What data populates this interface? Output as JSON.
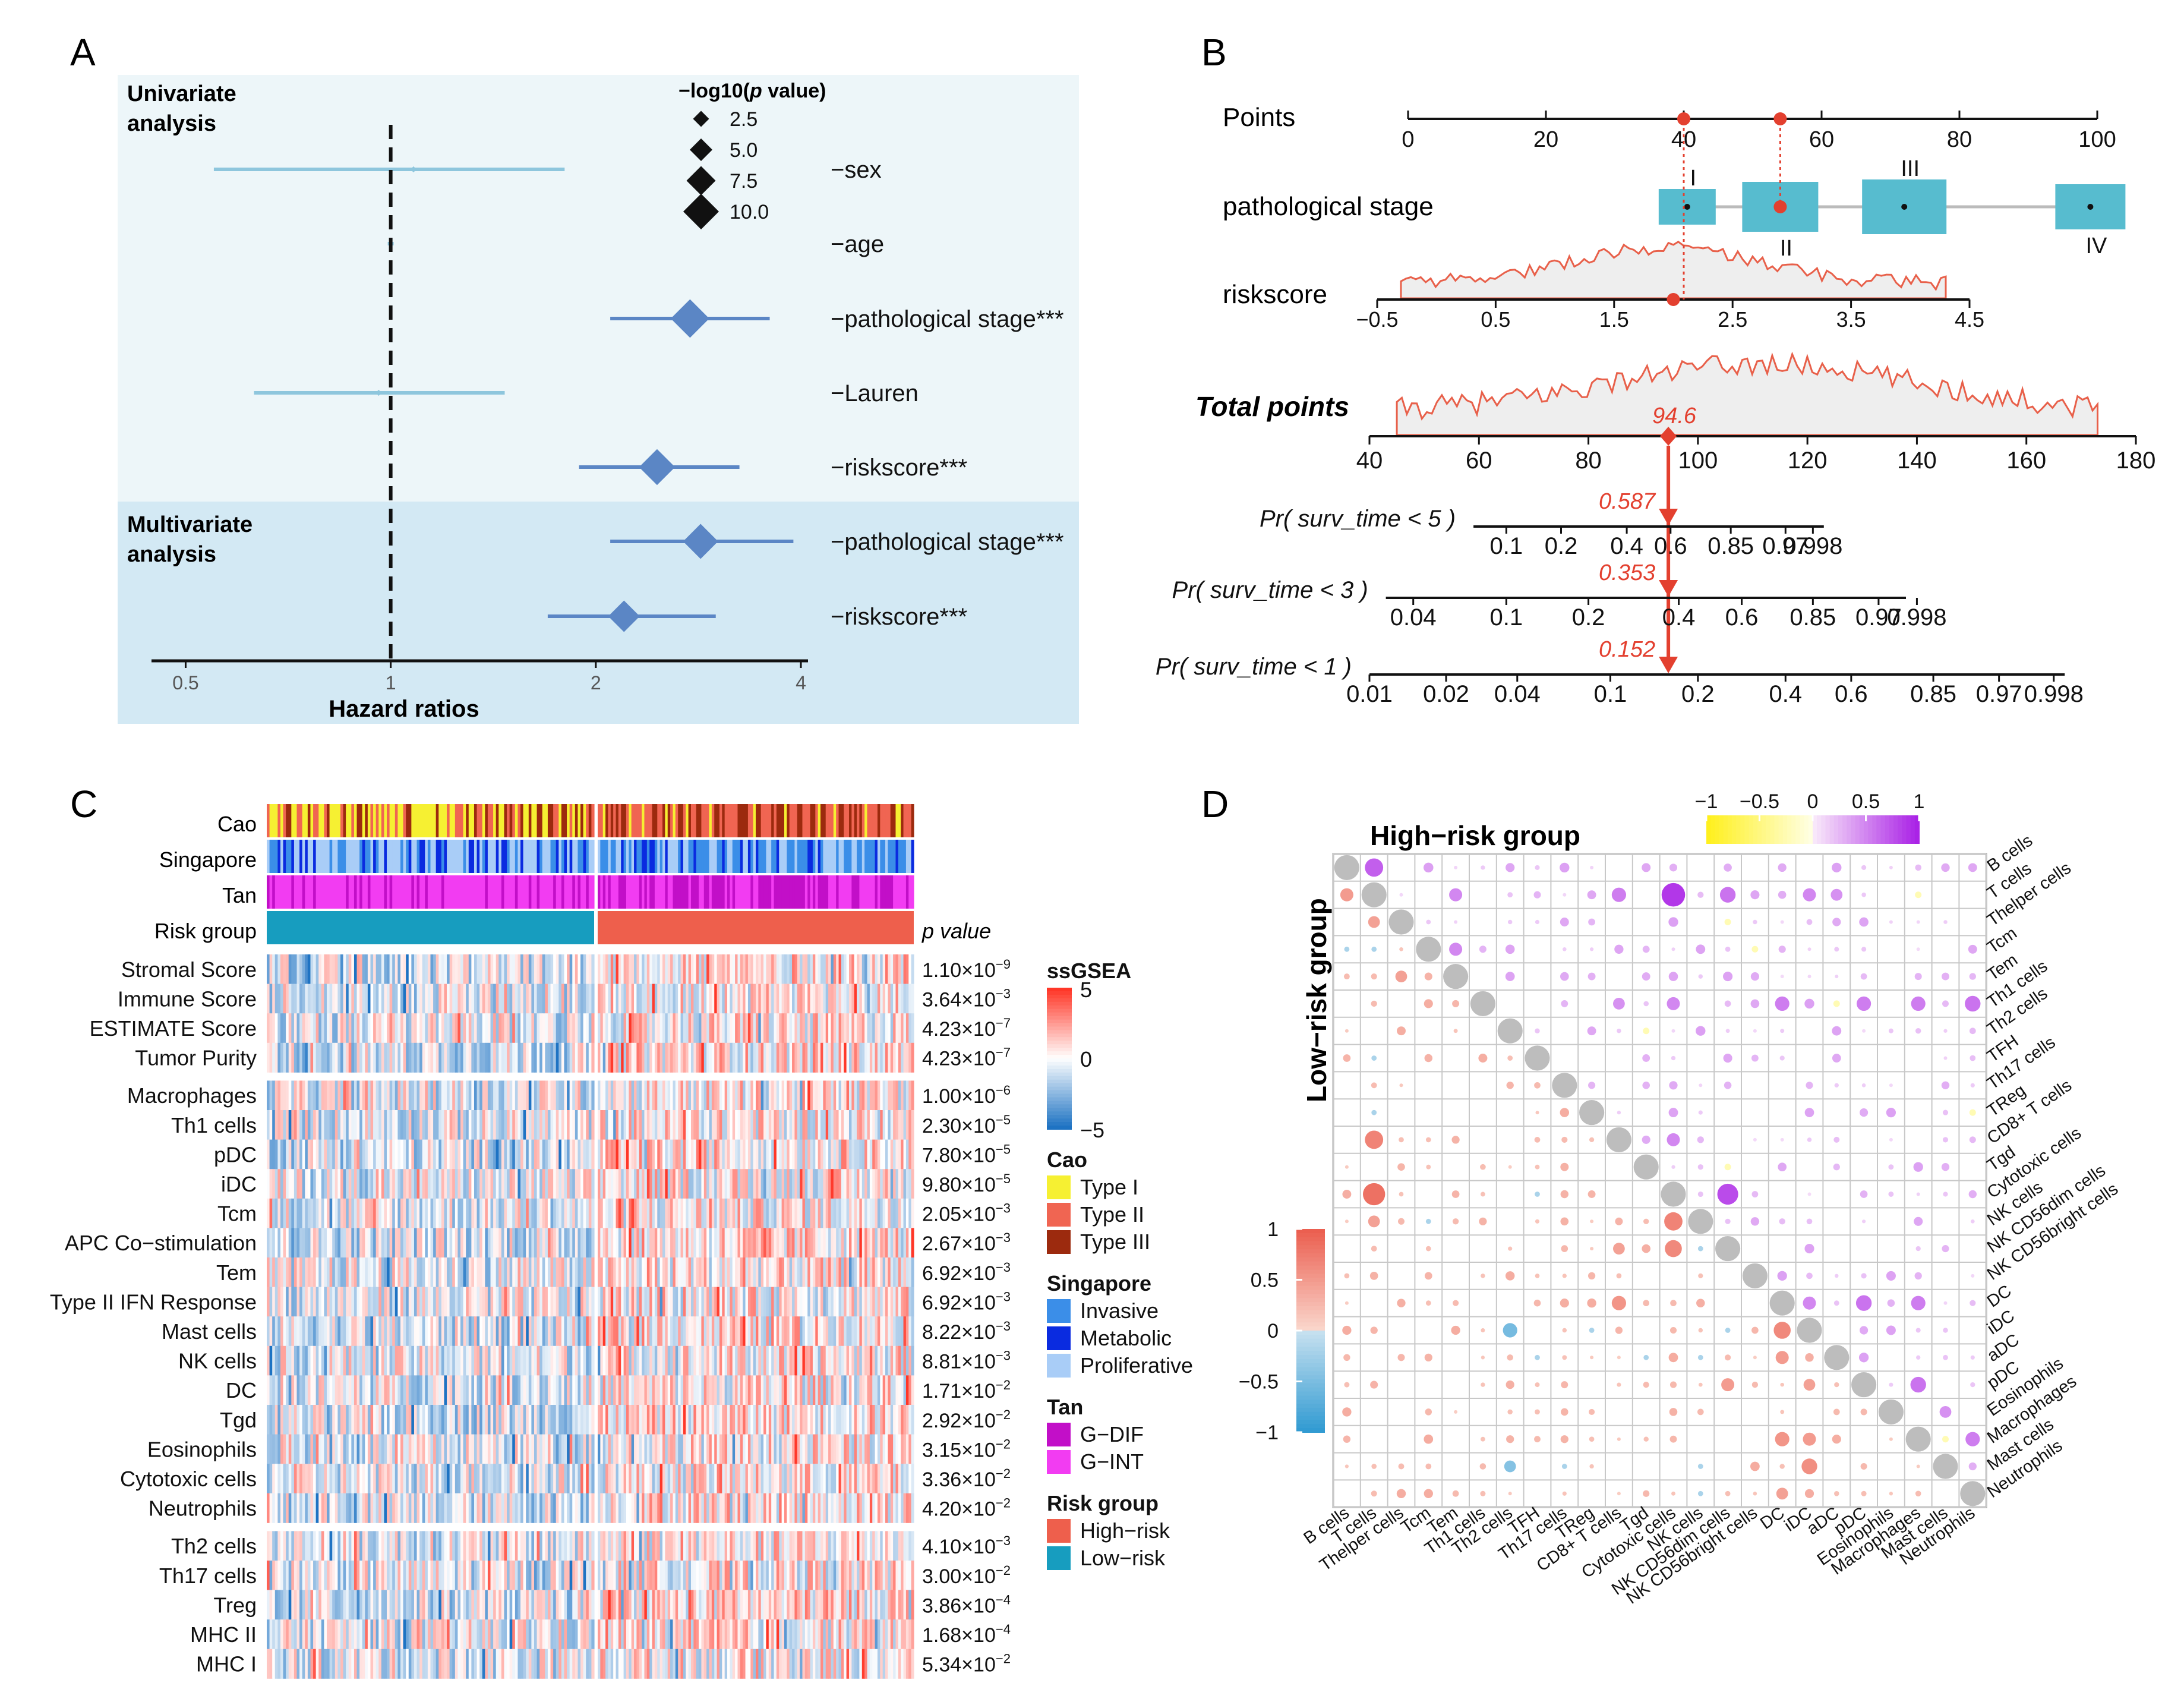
{
  "figure": {
    "panel_labels": [
      "A",
      "B",
      "C",
      "D"
    ]
  },
  "chart_data": [
    {
      "panel": "A",
      "type": "forest",
      "xlabel": "Hazard ratios",
      "xscale": "log2",
      "xlim": [
        0.45,
        4.0
      ],
      "ticks": [
        {
          "v": 0.5,
          "label": "0.5"
        },
        {
          "v": 1,
          "label": "1"
        },
        {
          "v": 2,
          "label": "2"
        },
        {
          "v": 4,
          "label": "4"
        }
      ],
      "reference_line": 1,
      "groups": [
        {
          "label_line1": "Univariate",
          "label_line2": "analysis"
        },
        {
          "label_line1": "Multivariate",
          "label_line2": "analysis"
        }
      ],
      "legend": {
        "title_prefix": "−log10(",
        "title_italic": "p",
        "title_suffix": " value)",
        "items": [
          {
            "label": "2.5",
            "v": 2.5
          },
          {
            "label": "5.0",
            "v": 5.0
          },
          {
            "label": "7.5",
            "v": 7.5
          },
          {
            "label": "10.0",
            "v": 10.0
          }
        ]
      },
      "rows": [
        {
          "label": "−sex",
          "group": 0,
          "hr": 1.08,
          "lo": 0.55,
          "hi": 1.8,
          "mlog10p": 0.5,
          "color": "#8ec6dd"
        },
        {
          "label": "−age",
          "group": 0,
          "hr": 1.0,
          "lo": 0.99,
          "hi": 1.01,
          "mlog10p": 0.4,
          "color": "#8ec6dd"
        },
        {
          "label": "−pathological stage***",
          "group": 0,
          "hr": 2.75,
          "lo": 2.1,
          "hi": 3.6,
          "mlog10p": 7.0,
          "color": "#5b86c5"
        },
        {
          "label": "−Lauren",
          "group": 0,
          "hr": 0.96,
          "lo": 0.63,
          "hi": 1.47,
          "mlog10p": 0.5,
          "color": "#8ec6dd"
        },
        {
          "label": "−riskscore***",
          "group": 0,
          "hr": 2.46,
          "lo": 1.89,
          "hi": 3.25,
          "mlog10p": 6.5,
          "color": "#5b86c5"
        },
        {
          "label": "−pathological stage***",
          "group": 1,
          "hr": 2.85,
          "lo": 2.1,
          "hi": 3.9,
          "mlog10p": 6.3,
          "color": "#5b86c5"
        },
        {
          "label": "−riskscore***",
          "group": 1,
          "hr": 2.2,
          "lo": 1.7,
          "hi": 3.0,
          "mlog10p": 5.6,
          "color": "#5b86c5"
        }
      ]
    },
    {
      "panel": "B",
      "type": "nomogram",
      "points_axis": {
        "label": "Points",
        "min": 0,
        "max": 100,
        "ticks": [
          0,
          20,
          40,
          60,
          80,
          100
        ]
      },
      "stage": {
        "label": "pathological stage",
        "levels": [
          {
            "name": "I",
            "points": 40.5
          },
          {
            "name": "II",
            "points": 54
          },
          {
            "name": "III",
            "points": 72
          },
          {
            "name": "IV",
            "points": 99
          }
        ]
      },
      "riskscore": {
        "label": "riskscore",
        "min": -0.5,
        "max": 4.5,
        "ticks": [
          -0.5,
          0.5,
          1.5,
          2.5,
          3.5,
          4.5
        ],
        "tick_labels": [
          "−0.5",
          "0.5",
          "1.5",
          "2.5",
          "3.5",
          "4.5"
        ],
        "selected": 2.0
      },
      "selected_points": [
        40,
        54
      ],
      "total_points": {
        "label": "Total points",
        "min": 40,
        "max": 180,
        "ticks": [
          40,
          60,
          80,
          100,
          120,
          140,
          160,
          180
        ],
        "value": 94.6,
        "value_label": "94.6"
      },
      "probabilities": [
        {
          "label_prefix": "Pr( surv_time < ",
          "t": "5",
          "value": 0.587,
          "value_label": "0.587",
          "ticks": [
            {
              "l": "0.1",
              "tp": 65
            },
            {
              "l": "0.2",
              "tp": 75
            },
            {
              "l": "0.4",
              "tp": 87
            },
            {
              "l": "0.6",
              "tp": 95
            },
            {
              "l": "0.85",
              "tp": 106
            },
            {
              "l": "0.97",
              "tp": 116
            },
            {
              "l": "0.998",
              "tp": 121
            }
          ],
          "range": [
            59,
            123
          ]
        },
        {
          "label_prefix": "Pr( surv_time < ",
          "t": "3",
          "value": 0.353,
          "value_label": "0.353",
          "ticks": [
            {
              "l": "0.04",
              "tp": 48
            },
            {
              "l": "0.1",
              "tp": 65
            },
            {
              "l": "0.2",
              "tp": 80
            },
            {
              "l": "0.4",
              "tp": 96.5
            },
            {
              "l": "0.6",
              "tp": 108
            },
            {
              "l": "0.85",
              "tp": 121
            },
            {
              "l": "0.97",
              "tp": 133
            },
            {
              "l": "0.998",
              "tp": 140
            }
          ],
          "range": [
            43,
            138
          ]
        },
        {
          "label_prefix": "Pr( surv_time < ",
          "t": "1",
          "value": 0.152,
          "value_label": "0.152",
          "ticks": [
            {
              "l": "0.01",
              "tp": 40
            },
            {
              "l": "0.02",
              "tp": 54
            },
            {
              "l": "0.04",
              "tp": 67
            },
            {
              "l": "0.1",
              "tp": 84
            },
            {
              "l": "0.2",
              "tp": 100
            },
            {
              "l": "0.4",
              "tp": 116
            },
            {
              "l": "0.6",
              "tp": 128
            },
            {
              "l": "0.85",
              "tp": 143
            },
            {
              "l": "0.97",
              "tp": 155
            },
            {
              "l": "0.998",
              "tp": 165
            }
          ],
          "range": [
            40,
            167
          ]
        }
      ]
    },
    {
      "panel": "C",
      "type": "heatmap",
      "annotation_rows": [
        "Cao",
        "Singapore",
        "Tan",
        "Risk group"
      ],
      "pvalue_header": "p value",
      "rows": [
        {
          "label": "Stromal Score",
          "p": "1.10×10",
          "exp": "−9",
          "block": 0
        },
        {
          "label": "Immune Score",
          "p": "3.64×10",
          "exp": "−3",
          "block": 0
        },
        {
          "label": "ESTIMATE Score",
          "p": "4.23×10",
          "exp": "−7",
          "block": 0
        },
        {
          "label": "Tumor Purity",
          "p": "4.23×10",
          "exp": "−7",
          "block": 0
        },
        {
          "label": "Macrophages",
          "p": "1.00×10",
          "exp": "−6",
          "block": 1
        },
        {
          "label": "Th1 cells",
          "p": "2.30×10",
          "exp": "−5",
          "block": 1
        },
        {
          "label": "pDC",
          "p": "7.80×10",
          "exp": "−5",
          "block": 1
        },
        {
          "label": "iDC",
          "p": "9.80×10",
          "exp": "−5",
          "block": 1
        },
        {
          "label": "Tcm",
          "p": "2.05×10",
          "exp": "−3",
          "block": 1
        },
        {
          "label": "APC Co−stimulation",
          "p": "2.67×10",
          "exp": "−3",
          "block": 1
        },
        {
          "label": "Tem",
          "p": "6.92×10",
          "exp": "−3",
          "block": 1
        },
        {
          "label": "Type II IFN Response",
          "p": "6.92×10",
          "exp": "−3",
          "block": 1
        },
        {
          "label": "Mast cells",
          "p": "8.22×10",
          "exp": "−3",
          "block": 1
        },
        {
          "label": "NK cells",
          "p": "8.81×10",
          "exp": "−3",
          "block": 1
        },
        {
          "label": "DC",
          "p": "1.71×10",
          "exp": "−2",
          "block": 1
        },
        {
          "label": "Tgd",
          "p": "2.92×10",
          "exp": "−2",
          "block": 1
        },
        {
          "label": "Eosinophils",
          "p": "3.15×10",
          "exp": "−2",
          "block": 1
        },
        {
          "label": "Cytotoxic cells",
          "p": "3.36×10",
          "exp": "−2",
          "block": 1
        },
        {
          "label": "Neutrophils",
          "p": "4.20×10",
          "exp": "−2",
          "block": 1
        },
        {
          "label": "Th2 cells",
          "p": "4.10×10",
          "exp": "−3",
          "block": 2
        },
        {
          "label": "Th17 cells",
          "p": "3.00×10",
          "exp": "−2",
          "block": 2
        },
        {
          "label": "Treg",
          "p": "3.86×10",
          "exp": "−4",
          "block": 2
        },
        {
          "label": "MHC II",
          "p": "1.68×10",
          "exp": "−4",
          "block": 2
        },
        {
          "label": "MHC I",
          "p": "5.34×10",
          "exp": "−2",
          "block": 2
        }
      ],
      "scale": {
        "title": "ssGSEA",
        "min": -5,
        "max": 5,
        "tick_labels": [
          "5",
          "0",
          "−5"
        ]
      },
      "legends": [
        {
          "title": "Cao",
          "items": [
            {
              "label": "Type I",
              "color": "#f6f032"
            },
            {
              "label": "Type II",
              "color": "#f06552"
            },
            {
              "label": "Type III",
              "color": "#9c2a0e"
            }
          ]
        },
        {
          "title": "Singapore",
          "items": [
            {
              "label": "Invasive",
              "color": "#3b8ee8"
            },
            {
              "label": "Metabolic",
              "color": "#0a2be0"
            },
            {
              "label": "Proliferative",
              "color": "#a9cdf7"
            }
          ]
        },
        {
          "title": "Tan",
          "items": [
            {
              "label": "G−DIF",
              "color": "#c20fc8"
            },
            {
              "label": "G−INT",
              "color": "#f23cf2"
            }
          ]
        },
        {
          "title": "Risk group",
          "items": [
            {
              "label": "High−risk",
              "color": "#ee5f4c"
            },
            {
              "label": "Low−risk",
              "color": "#179dbf"
            }
          ]
        }
      ],
      "n_low": 120,
      "n_high": 122
    },
    {
      "panel": "D",
      "type": "correlation-matrix",
      "upper_title": "High−risk group",
      "lower_title": "Low−risk group",
      "cells": [
        "B cells",
        "T cells",
        "Thelper cells",
        "Tcm",
        "Tem",
        "Th1 cells",
        "Th2 cells",
        "TFH",
        "Th17 cells",
        "TReg",
        "CD8+ T cells",
        "Tgd",
        "Cytotoxic cells",
        "NK cells",
        "NK CD56dim cells",
        "NK CD56bright cells",
        "DC",
        "iDC",
        "aDC",
        "pDC",
        "Eosinophils",
        "Macrophages",
        "Mast cells",
        "Neutrophils"
      ],
      "upper_scale": {
        "min": -1,
        "max": 1,
        "ticks": [
          "−1",
          "−0.5",
          "0",
          "0.5",
          "1"
        ]
      },
      "lower_scale": {
        "min": -1,
        "max": 1,
        "ticks": [
          "1",
          "0.5",
          "0",
          "−0.5",
          "−1"
        ]
      },
      "upper_strong": [
        [
          0,
          1,
          0.7
        ],
        [
          1,
          4,
          0.5
        ],
        [
          1,
          10,
          0.55
        ],
        [
          1,
          12,
          0.9
        ],
        [
          1,
          14,
          0.6
        ],
        [
          1,
          17,
          0.5
        ],
        [
          1,
          18,
          0.45
        ],
        [
          3,
          4,
          0.5
        ],
        [
          5,
          10,
          0.45
        ],
        [
          5,
          12,
          0.5
        ],
        [
          5,
          16,
          0.55
        ],
        [
          5,
          19,
          0.55
        ],
        [
          5,
          21,
          0.55
        ],
        [
          5,
          23,
          0.6
        ],
        [
          10,
          12,
          0.5
        ],
        [
          12,
          14,
          0.8
        ],
        [
          16,
          17,
          0.5
        ],
        [
          16,
          19,
          0.6
        ],
        [
          16,
          21,
          0.55
        ],
        [
          19,
          21,
          0.6
        ],
        [
          21,
          23,
          0.55
        ],
        [
          20,
          22,
          0.45
        ]
      ],
      "lower_strong": [
        [
          1,
          0,
          0.5
        ],
        [
          2,
          1,
          0.45
        ],
        [
          4,
          2,
          0.45
        ],
        [
          10,
          1,
          0.7
        ],
        [
          12,
          1,
          0.85
        ],
        [
          13,
          1,
          0.45
        ],
        [
          13,
          12,
          0.7
        ],
        [
          14,
          12,
          0.65
        ],
        [
          14,
          10,
          0.45
        ],
        [
          16,
          10,
          0.55
        ],
        [
          17,
          16,
          0.65
        ],
        [
          17,
          6,
          -0.55
        ],
        [
          18,
          16,
          0.5
        ],
        [
          19,
          14,
          0.5
        ],
        [
          21,
          16,
          0.55
        ],
        [
          21,
          17,
          0.5
        ],
        [
          22,
          17,
          0.6
        ],
        [
          22,
          6,
          -0.45
        ],
        [
          19,
          17,
          0.45
        ],
        [
          23,
          16,
          0.45
        ]
      ]
    }
  ]
}
